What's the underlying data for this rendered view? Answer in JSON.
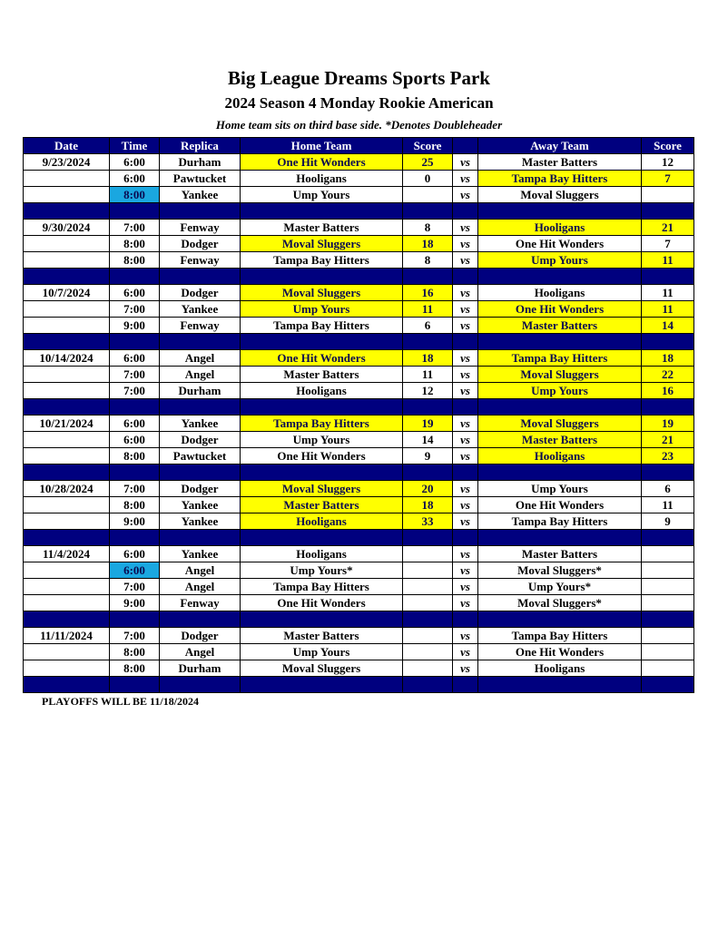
{
  "title": "Big League Dreams Sports Park",
  "subtitle": "2024 Season 4 Monday Rookie American",
  "note": "Home team sits on third base side.  *Denotes Doubleheader",
  "headers": [
    "Date",
    "Time",
    "Replica",
    "Home Team",
    "Score",
    "",
    "Away Team",
    "Score"
  ],
  "vs_label": "vs",
  "colors": {
    "header": "#00007f",
    "winner": "#ffff00",
    "highlight": "#1aa7e0"
  },
  "weeks": [
    {
      "date": "9/23/2024",
      "games": [
        {
          "time": "6:00",
          "replica": "Durham",
          "home": "One Hit Wonders",
          "home_score": "25",
          "away": "Master Batters",
          "away_score": "12",
          "winner": "home"
        },
        {
          "time": "6:00",
          "replica": "Pawtucket",
          "home": "Hooligans",
          "home_score": "0",
          "away": "Tampa Bay Hitters",
          "away_score": "7",
          "winner": "away"
        },
        {
          "time": "8:00",
          "replica": "Yankee",
          "home": "Ump Yours",
          "home_score": "",
          "away": "Moval Sluggers",
          "away_score": "",
          "winner": "",
          "time_highlight": true
        }
      ]
    },
    {
      "date": "9/30/2024",
      "games": [
        {
          "time": "7:00",
          "replica": "Fenway",
          "home": "Master Batters",
          "home_score": "8",
          "away": "Hooligans",
          "away_score": "21",
          "winner": "away"
        },
        {
          "time": "8:00",
          "replica": "Dodger",
          "home": "Moval Sluggers",
          "home_score": "18",
          "away": "One Hit Wonders",
          "away_score": "7",
          "winner": "home"
        },
        {
          "time": "8:00",
          "replica": "Fenway",
          "home": "Tampa Bay Hitters",
          "home_score": "8",
          "away": "Ump Yours",
          "away_score": "11",
          "winner": "away"
        }
      ]
    },
    {
      "date": "10/7/2024",
      "games": [
        {
          "time": "6:00",
          "replica": "Dodger",
          "home": "Moval Sluggers",
          "home_score": "16",
          "away": "Hooligans",
          "away_score": "11",
          "winner": "home"
        },
        {
          "time": "7:00",
          "replica": "Yankee",
          "home": "Ump Yours",
          "home_score": "11",
          "away": "One Hit Wonders",
          "away_score": "11",
          "winner": "both"
        },
        {
          "time": "9:00",
          "replica": "Fenway",
          "home": "Tampa Bay Hitters",
          "home_score": "6",
          "away": "Master Batters",
          "away_score": "14",
          "winner": "away"
        }
      ]
    },
    {
      "date": "10/14/2024",
      "games": [
        {
          "time": "6:00",
          "replica": "Angel",
          "home": "One Hit Wonders",
          "home_score": "18",
          "away": "Tampa Bay Hitters",
          "away_score": "18",
          "winner": "both"
        },
        {
          "time": "7:00",
          "replica": "Angel",
          "home": "Master Batters",
          "home_score": "11",
          "away": "Moval Sluggers",
          "away_score": "22",
          "winner": "away"
        },
        {
          "time": "7:00",
          "replica": "Durham",
          "home": "Hooligans",
          "home_score": "12",
          "away": "Ump Yours",
          "away_score": "16",
          "winner": "away"
        }
      ]
    },
    {
      "date": "10/21/2024",
      "games": [
        {
          "time": "6:00",
          "replica": "Yankee",
          "home": "Tampa Bay Hitters",
          "home_score": "19",
          "away": "Moval Sluggers",
          "away_score": "19",
          "winner": "both"
        },
        {
          "time": "6:00",
          "replica": "Dodger",
          "home": "Ump Yours",
          "home_score": "14",
          "away": "Master Batters",
          "away_score": "21",
          "winner": "away"
        },
        {
          "time": "8:00",
          "replica": "Pawtucket",
          "home": "One Hit Wonders",
          "home_score": "9",
          "away": "Hooligans",
          "away_score": "23",
          "winner": "away"
        }
      ]
    },
    {
      "date": "10/28/2024",
      "games": [
        {
          "time": "7:00",
          "replica": "Dodger",
          "home": "Moval Sluggers",
          "home_score": "20",
          "away": "Ump Yours",
          "away_score": "6",
          "winner": "home"
        },
        {
          "time": "8:00",
          "replica": "Yankee",
          "home": "Master Batters",
          "home_score": "18",
          "away": "One Hit Wonders",
          "away_score": "11",
          "winner": "home"
        },
        {
          "time": "9:00",
          "replica": "Yankee",
          "home": "Hooligans",
          "home_score": "33",
          "away": "Tampa Bay Hitters",
          "away_score": "9",
          "winner": "home"
        }
      ]
    },
    {
      "date": "11/4/2024",
      "games": [
        {
          "time": "6:00",
          "replica": "Yankee",
          "home": "Hooligans",
          "home_score": "",
          "away": "Master Batters",
          "away_score": "",
          "winner": ""
        },
        {
          "time": "6:00",
          "replica": "Angel",
          "home": "Ump Yours*",
          "home_score": "",
          "away": "Moval Sluggers*",
          "away_score": "",
          "winner": "",
          "time_highlight": true
        },
        {
          "time": "7:00",
          "replica": "Angel",
          "home": "Tampa Bay Hitters",
          "home_score": "",
          "away": "Ump Yours*",
          "away_score": "",
          "winner": ""
        },
        {
          "time": "9:00",
          "replica": "Fenway",
          "home": "One Hit Wonders",
          "home_score": "",
          "away": "Moval Sluggers*",
          "away_score": "",
          "winner": ""
        }
      ]
    },
    {
      "date": "11/11/2024",
      "games": [
        {
          "time": "7:00",
          "replica": "Dodger",
          "home": "Master Batters",
          "home_score": "",
          "away": "Tampa Bay Hitters",
          "away_score": "",
          "winner": ""
        },
        {
          "time": "8:00",
          "replica": "Angel",
          "home": "Ump Yours",
          "home_score": "",
          "away": "One Hit Wonders",
          "away_score": "",
          "winner": ""
        },
        {
          "time": "8:00",
          "replica": "Durham",
          "home": "Moval Sluggers",
          "home_score": "",
          "away": "Hooligans",
          "away_score": "",
          "winner": ""
        }
      ]
    }
  ],
  "footer": "PLAYOFFS WILL BE 11/18/2024"
}
